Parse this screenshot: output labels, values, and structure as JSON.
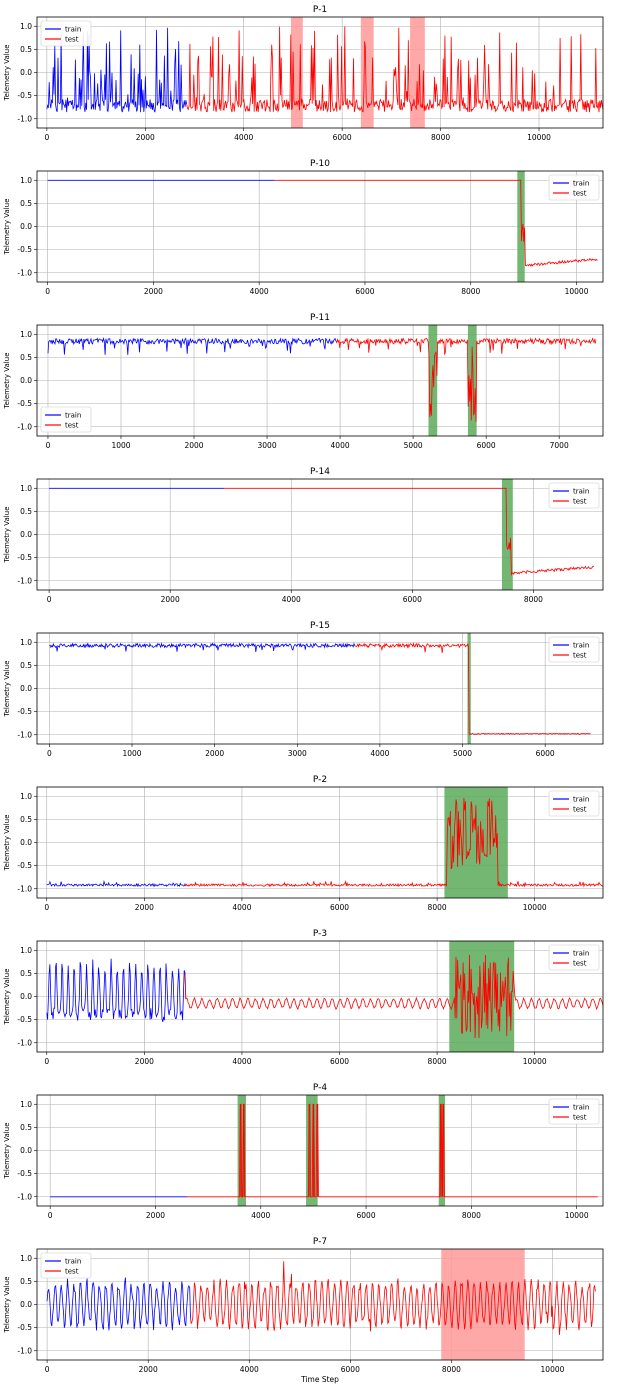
{
  "chart_data": [
    {
      "type": "line",
      "title": "P-1",
      "ylabel": "Telemetry Value",
      "xlabel": "",
      "xlim": [
        -200,
        11300
      ],
      "ylim": [
        -1.2,
        1.2
      ],
      "xticks": [
        0,
        2000,
        4000,
        6000,
        8000,
        10000
      ],
      "yticks": [
        -1.0,
        -0.5,
        0.0,
        0.5,
        1.0
      ],
      "legend": "top-left",
      "grid": true,
      "split": 2850,
      "end": 11300,
      "pattern": "noisy",
      "series": [
        {
          "name": "train",
          "color": "#0000ff"
        },
        {
          "name": "test",
          "color": "#ff0000"
        }
      ],
      "anomaly_regions": [
        {
          "start": 4960,
          "end": 5200,
          "color": "#ff9999"
        },
        {
          "start": 6380,
          "end": 6640,
          "color": "#ff9999"
        },
        {
          "start": 7380,
          "end": 7680,
          "color": "#ff9999"
        }
      ]
    },
    {
      "type": "line",
      "title": "P-10",
      "ylabel": "Telemetry Value",
      "xlabel": "",
      "xlim": [
        -200,
        10500
      ],
      "ylim": [
        -1.2,
        1.2
      ],
      "xticks": [
        0,
        2000,
        4000,
        6000,
        8000,
        10000
      ],
      "yticks": [
        -1.0,
        -0.5,
        0.0,
        0.5,
        1.0
      ],
      "legend": "top-right",
      "grid": true,
      "split": 4300,
      "end": 10400,
      "pattern": "drop",
      "drop_at": 8950,
      "series": [
        {
          "name": "train",
          "color": "#0000ff"
        },
        {
          "name": "test",
          "color": "#ff0000"
        }
      ],
      "anomaly_regions": [
        {
          "start": 8880,
          "end": 9020,
          "color": "#5aaa5a"
        }
      ]
    },
    {
      "type": "line",
      "title": "P-11",
      "ylabel": "Telemetry Value",
      "xlabel": "",
      "xlim": [
        -150,
        7600
      ],
      "ylim": [
        -1.2,
        1.2
      ],
      "xticks": [
        0,
        1000,
        2000,
        3000,
        4000,
        5000,
        6000,
        7000
      ],
      "yticks": [
        -1.0,
        -0.5,
        0.0,
        0.5,
        1.0
      ],
      "legend": "bottom-left",
      "grid": true,
      "split": 3950,
      "end": 7500,
      "pattern": "high",
      "series": [
        {
          "name": "train",
          "color": "#0000ff"
        },
        {
          "name": "test",
          "color": "#ff0000"
        }
      ],
      "anomaly_regions": [
        {
          "start": 5210,
          "end": 5330,
          "color": "#5aaa5a"
        },
        {
          "start": 5750,
          "end": 5870,
          "color": "#5aaa5a"
        }
      ]
    },
    {
      "type": "line",
      "title": "P-14",
      "ylabel": "Telemetry Value",
      "xlabel": "",
      "xlim": [
        -200,
        9150
      ],
      "ylim": [
        -1.2,
        1.2
      ],
      "xticks": [
        0,
        2000,
        4000,
        6000,
        8000
      ],
      "yticks": [
        -1.0,
        -0.5,
        0.0,
        0.5,
        1.0
      ],
      "legend": "top-right",
      "grid": true,
      "split": 2900,
      "end": 9000,
      "pattern": "drop",
      "drop_at": 7550,
      "series": [
        {
          "name": "train",
          "color": "#0000ff"
        },
        {
          "name": "test",
          "color": "#ff0000"
        }
      ],
      "anomaly_regions": [
        {
          "start": 7480,
          "end": 7660,
          "color": "#5aaa5a"
        }
      ]
    },
    {
      "type": "line",
      "title": "P-15",
      "ylabel": "Telemetry Value",
      "xlabel": "",
      "xlim": [
        -150,
        6700
      ],
      "ylim": [
        -1.2,
        1.2
      ],
      "xticks": [
        0,
        1000,
        2000,
        3000,
        4000,
        5000,
        6000
      ],
      "yticks": [
        -1.0,
        -0.5,
        0.0,
        0.5,
        1.0
      ],
      "legend": "top-right",
      "grid": true,
      "split": 3700,
      "end": 6550,
      "pattern": "step",
      "drop_at": 5080,
      "series": [
        {
          "name": "train",
          "color": "#0000ff"
        },
        {
          "name": "test",
          "color": "#ff0000"
        }
      ],
      "anomaly_regions": [
        {
          "start": 5060,
          "end": 5100,
          "color": "#5aaa5a"
        }
      ]
    },
    {
      "type": "line",
      "title": "P-2",
      "ylabel": "Telemetry Value",
      "xlabel": "",
      "xlim": [
        -200,
        11400
      ],
      "ylim": [
        -1.2,
        1.2
      ],
      "xticks": [
        0,
        2000,
        4000,
        6000,
        8000,
        10000
      ],
      "yticks": [
        -1.0,
        -0.5,
        0.0,
        0.5,
        1.0
      ],
      "legend": "top-right",
      "grid": true,
      "split": 2850,
      "end": 11400,
      "pattern": "low",
      "burst": [
        8200,
        9250
      ],
      "series": [
        {
          "name": "train",
          "color": "#0000ff"
        },
        {
          "name": "test",
          "color": "#ff0000"
        }
      ],
      "anomaly_regions": [
        {
          "start": 8150,
          "end": 9450,
          "color": "#5aaa5a"
        }
      ]
    },
    {
      "type": "line",
      "title": "P-3",
      "ylabel": "Telemetry Value",
      "xlabel": "",
      "xlim": [
        -200,
        11400
      ],
      "ylim": [
        -1.2,
        1.2
      ],
      "xticks": [
        0,
        2000,
        4000,
        6000,
        8000,
        10000
      ],
      "yticks": [
        -1.0,
        -0.5,
        0.0,
        0.5,
        1.0
      ],
      "legend": "top-right",
      "grid": true,
      "split": 2850,
      "end": 11400,
      "pattern": "osc",
      "burst": [
        8350,
        9600
      ],
      "series": [
        {
          "name": "train",
          "color": "#0000ff"
        },
        {
          "name": "test",
          "color": "#ff0000"
        }
      ],
      "anomaly_regions": [
        {
          "start": 8250,
          "end": 9580,
          "color": "#5aaa5a"
        }
      ]
    },
    {
      "type": "line",
      "title": "P-4",
      "ylabel": "Telemetry Value",
      "xlabel": "",
      "xlim": [
        -250,
        10500
      ],
      "ylim": [
        -1.2,
        1.2
      ],
      "xticks": [
        0,
        2000,
        4000,
        6000,
        8000,
        10000
      ],
      "yticks": [
        -1.0,
        -0.5,
        0.0,
        0.5,
        1.0
      ],
      "legend": "top-right",
      "grid": true,
      "split": 2600,
      "end": 10400,
      "pattern": "flat_low",
      "spikes": [
        3620,
        3680,
        4920,
        5000,
        5080,
        7420,
        7460
      ],
      "series": [
        {
          "name": "train",
          "color": "#0000ff"
        },
        {
          "name": "test",
          "color": "#ff0000"
        }
      ],
      "anomaly_regions": [
        {
          "start": 3560,
          "end": 3720,
          "color": "#5aaa5a"
        },
        {
          "start": 4860,
          "end": 5080,
          "color": "#5aaa5a"
        },
        {
          "start": 7380,
          "end": 7500,
          "color": "#5aaa5a"
        }
      ]
    },
    {
      "type": "line",
      "title": "P-7",
      "ylabel": "Telemetry Value",
      "xlabel": "Time Step",
      "xlim": [
        -200,
        11000
      ],
      "ylim": [
        -1.2,
        1.2
      ],
      "xticks": [
        0,
        2000,
        4000,
        6000,
        8000,
        10000
      ],
      "yticks": [
        -1.0,
        -0.5,
        0.0,
        0.5,
        1.0
      ],
      "legend": "top-left",
      "grid": true,
      "split": 2850,
      "end": 10850,
      "pattern": "osc7",
      "series": [
        {
          "name": "train",
          "color": "#0000ff"
        },
        {
          "name": "test",
          "color": "#ff0000"
        }
      ],
      "anomaly_regions": [
        {
          "start": 7800,
          "end": 9450,
          "color": "#ff9999"
        }
      ]
    }
  ]
}
